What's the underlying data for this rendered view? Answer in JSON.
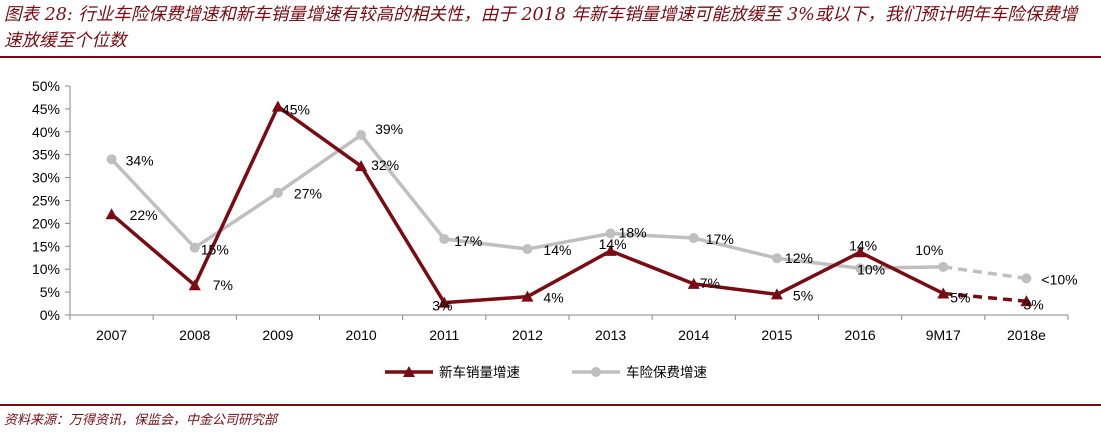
{
  "header": {
    "title": "图表 28: 行业车险保费增速和新车销量增速有较高的相关性，由于 2018 年新车销量增速可能放缓至 3%或以下，我们预计明年车险保费增速放缓至个位数"
  },
  "footer": {
    "source": "资料来源：万得资讯，保监会，中金公司研究部"
  },
  "chart_data": {
    "type": "line",
    "title": "",
    "xlabel": "",
    "ylabel": "",
    "categories": [
      "2007",
      "2008",
      "2009",
      "2010",
      "2011",
      "2012",
      "2013",
      "2014",
      "2015",
      "2016",
      "9M17",
      "2018e"
    ],
    "ylim": [
      0,
      50
    ],
    "yticks": [
      "0%",
      "5%",
      "10%",
      "15%",
      "20%",
      "25%",
      "30%",
      "35%",
      "40%",
      "45%",
      "50%"
    ],
    "grid": false,
    "legend_position": "bottom",
    "series": [
      {
        "name": "新车销量增速",
        "color": "#7a0b12",
        "marker": "triangle",
        "values": [
          22,
          6.5,
          45.5,
          32.5,
          2.7,
          4,
          14,
          6.8,
          4.5,
          13.7,
          4.7,
          3
        ],
        "labels": [
          "22%",
          "7%",
          "45%",
          "32%",
          "3%",
          "4%",
          "14%",
          "7%",
          "5%",
          "14%",
          "5%",
          "3%"
        ],
        "dashed_from_index": 10
      },
      {
        "name": "车险保费增速",
        "color": "#bfbfbf",
        "marker": "circle",
        "values": [
          34,
          14.7,
          26.7,
          39.3,
          16.6,
          14.4,
          17.8,
          16.8,
          12.4,
          10.2,
          10.5,
          8
        ],
        "labels": [
          "34%",
          "15%",
          "27%",
          "39%",
          "17%",
          "14%",
          "18%",
          "17%",
          "12%",
          "10%",
          "10%",
          "<10%"
        ],
        "dashed_from_index": 10
      }
    ]
  }
}
